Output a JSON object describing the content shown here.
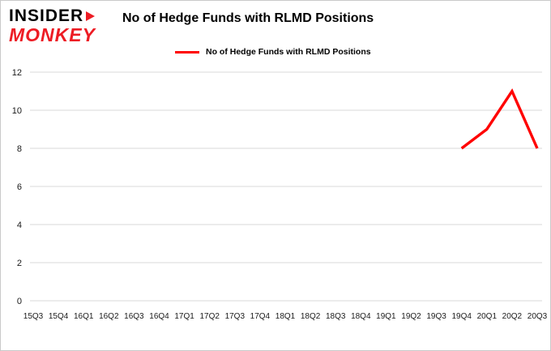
{
  "logo": {
    "line1": "INSIDER",
    "line2": "MONKEY"
  },
  "colors": {
    "logo_red": "#ed1c24",
    "line_red": "#ff0000",
    "grid": "#d9d9d9",
    "axis_text": "#1a1a1a"
  },
  "chart_data": {
    "type": "line",
    "title": "No of Hedge Funds with RLMD Positions",
    "categories": [
      "15Q3",
      "15Q4",
      "16Q1",
      "16Q2",
      "16Q3",
      "16Q4",
      "17Q1",
      "17Q2",
      "17Q3",
      "17Q4",
      "18Q1",
      "18Q2",
      "18Q3",
      "18Q4",
      "19Q1",
      "19Q2",
      "19Q3",
      "19Q4",
      "20Q1",
      "20Q2",
      "20Q3"
    ],
    "series": [
      {
        "name": "No of Hedge Funds with RLMD Positions",
        "color": "#ff0000",
        "values": [
          null,
          null,
          null,
          null,
          null,
          null,
          null,
          null,
          null,
          null,
          null,
          null,
          null,
          null,
          null,
          null,
          null,
          8,
          9,
          11,
          8
        ]
      }
    ],
    "xlabel": "",
    "ylabel": "",
    "ylim": [
      0,
      12
    ],
    "yticks": [
      0,
      2,
      4,
      6,
      8,
      10,
      12
    ],
    "grid": true,
    "legend_position": "top"
  }
}
